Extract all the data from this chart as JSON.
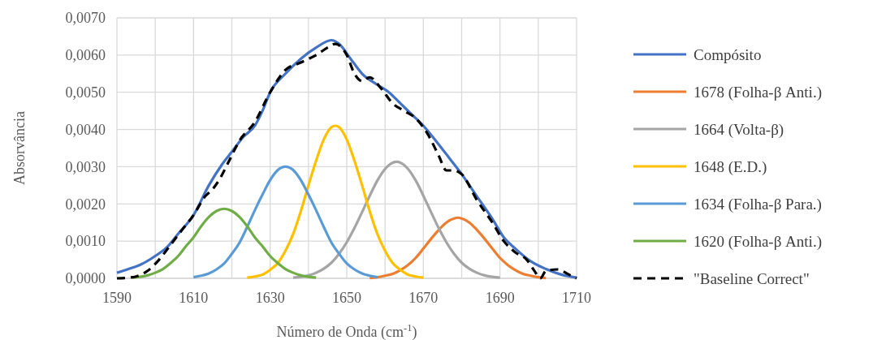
{
  "chart_data": {
    "type": "line",
    "xlabel": "Número de Onda (cm$^{-1}$)",
    "ylabel": "Absorvância",
    "xlim": [
      1590,
      1710
    ],
    "ylim": [
      0,
      0.007
    ],
    "xticks": [
      1590,
      {
        "value": 1600,
        "label": null
      },
      1610,
      {
        "value": 1620,
        "label": null
      },
      1630,
      {
        "value": 1640,
        "label": null
      },
      1650,
      {
        "value": 1660,
        "label": null
      },
      1670,
      {
        "value": 1680,
        "label": null
      },
      1690,
      {
        "value": 1700,
        "label": null
      },
      1710
    ],
    "yticks": [
      {
        "value": 0,
        "label": "0,0000"
      },
      {
        "value": 0.001,
        "label": "0,0010"
      },
      {
        "value": 0.002,
        "label": "0,0020"
      },
      {
        "value": 0.003,
        "label": "0,0030"
      },
      {
        "value": 0.004,
        "label": "0,0040"
      },
      {
        "value": 0.005,
        "label": "0,0050"
      },
      {
        "value": 0.006,
        "label": "0,0060"
      },
      {
        "value": 0.007,
        "label": "0,0070"
      }
    ],
    "grid": true,
    "legend": "right",
    "marker": "none",
    "series": [
      {
        "name": "Compósito",
        "color": "#4472c4",
        "x": [
          1590,
          1593,
          1596,
          1600,
          1603,
          1606,
          1610,
          1614,
          1617.5,
          1620,
          1623,
          1626,
          1628,
          1630,
          1634,
          1638,
          1642,
          1646,
          1648,
          1651,
          1654,
          1658,
          1661,
          1664,
          1667,
          1670,
          1674,
          1677,
          1680,
          1684,
          1688,
          1691,
          1694,
          1698,
          1702,
          1706,
          1710
        ],
        "values": [
          0.00015,
          0.00025,
          0.00036,
          0.0006,
          0.00083,
          0.0012,
          0.0017,
          0.0025,
          0.00307,
          0.0034,
          0.0038,
          0.0041,
          0.0045,
          0.005,
          0.0055,
          0.0059,
          0.0062,
          0.0064,
          0.0063,
          0.0059,
          0.0055,
          0.0052,
          0.005,
          0.0047,
          0.0044,
          0.0041,
          0.0036,
          0.0032,
          0.0028,
          0.0022,
          0.0016,
          0.0011,
          0.0008,
          0.00046,
          0.00025,
          0.0001,
          2e-05
        ]
      },
      {
        "name": "1678 (Folha-β Anti.)",
        "color": "#ed7d31",
        "x": [
          1656,
          1658,
          1660,
          1662,
          1664,
          1666,
          1668,
          1670,
          1672,
          1674,
          1676,
          1678,
          1679,
          1680,
          1682,
          1684,
          1686,
          1688,
          1690,
          1692,
          1694,
          1696,
          1698,
          1700,
          1702
        ],
        "values": [
          1e-05,
          3e-05,
          7e-05,
          0.00012,
          0.00022,
          0.00036,
          0.00055,
          0.0008,
          0.00106,
          0.0013,
          0.0015,
          0.00161,
          0.00163,
          0.00161,
          0.0015,
          0.0013,
          0.00106,
          0.0008,
          0.00055,
          0.00036,
          0.00022,
          0.00012,
          7e-05,
          3e-05,
          1e-05
        ]
      },
      {
        "name": "1664 (Volta-β)",
        "color": "#a5a5a5",
        "x": [
          1636,
          1638,
          1640,
          1642,
          1644,
          1646,
          1648,
          1650,
          1652,
          1654,
          1656,
          1658,
          1660,
          1662,
          1663,
          1664,
          1666,
          1668,
          1670,
          1672,
          1674,
          1676,
          1678,
          1680,
          1682,
          1684,
          1686,
          1688,
          1690
        ],
        "values": [
          2e-05,
          4e-05,
          8e-05,
          0.00015,
          0.00026,
          0.00042,
          0.00066,
          0.00097,
          0.00135,
          0.00178,
          0.00222,
          0.00263,
          0.00294,
          0.00311,
          0.00313,
          0.00311,
          0.00294,
          0.00263,
          0.00222,
          0.00178,
          0.00135,
          0.00097,
          0.00066,
          0.00042,
          0.00026,
          0.00015,
          8e-05,
          4e-05,
          2e-05
        ]
      },
      {
        "name": "1648 (E.D.)",
        "color": "#ffc000",
        "x": [
          1624,
          1626,
          1628,
          1630,
          1632,
          1634,
          1636,
          1638,
          1640,
          1642,
          1644,
          1646,
          1647,
          1648,
          1650,
          1652,
          1654,
          1656,
          1658,
          1660,
          1662,
          1664,
          1666,
          1668,
          1670
        ],
        "values": [
          2e-05,
          5e-05,
          0.0001,
          0.00023,
          0.00041,
          0.00074,
          0.00119,
          0.0018,
          0.0025,
          0.00316,
          0.00373,
          0.00406,
          0.0041,
          0.00406,
          0.00373,
          0.00316,
          0.0025,
          0.0018,
          0.00119,
          0.00074,
          0.00041,
          0.00023,
          0.0001,
          5e-05,
          2e-05
        ]
      },
      {
        "name": "1634 (Folha-β Para.)",
        "color": "#5b9bd5",
        "x": [
          1610,
          1612,
          1614,
          1616,
          1618,
          1620,
          1622,
          1624,
          1626,
          1628,
          1630,
          1632,
          1634,
          1636,
          1638,
          1640,
          1642,
          1644,
          1646,
          1648,
          1650,
          1652,
          1654,
          1656,
          1658
        ],
        "values": [
          3e-05,
          7e-05,
          0.00013,
          0.00024,
          0.0004,
          0.00066,
          0.00096,
          0.00138,
          0.00183,
          0.00225,
          0.00264,
          0.00291,
          0.003,
          0.00291,
          0.00264,
          0.00225,
          0.00183,
          0.00138,
          0.00096,
          0.00066,
          0.0004,
          0.00024,
          0.00013,
          7e-05,
          3e-05
        ]
      },
      {
        "name": "1620 (Folha-β Anti.)",
        "color": "#70ad47",
        "x": [
          1594,
          1596,
          1598,
          1600,
          1602,
          1604,
          1606,
          1608,
          1610,
          1612,
          1614,
          1616,
          1618,
          1620,
          1622,
          1624,
          1626,
          1628,
          1630,
          1632,
          1634,
          1636,
          1638,
          1640,
          1642
        ],
        "values": [
          2e-05,
          4e-05,
          8e-05,
          0.00015,
          0.00025,
          0.00041,
          0.0006,
          0.00086,
          0.0011,
          0.0014,
          0.00165,
          0.00181,
          0.00187,
          0.00181,
          0.00165,
          0.0014,
          0.0011,
          0.00086,
          0.0006,
          0.00041,
          0.00025,
          0.00015,
          8e-05,
          4e-05,
          2e-05
        ]
      },
      {
        "name": "\"Baseline Correct\"",
        "color": "#000000",
        "line_style": "dashed",
        "x": [
          1590,
          1592,
          1595,
          1598,
          1601,
          1604,
          1607,
          1610,
          1613,
          1615,
          1617,
          1619,
          1622,
          1626,
          1630,
          1634,
          1638,
          1642,
          1645,
          1647,
          1650,
          1652,
          1654,
          1656,
          1659,
          1662,
          1665,
          1668,
          1671,
          1674,
          1676,
          1678,
          1680,
          1684,
          1688,
          1691,
          1694,
          1697,
          1699,
          1700.5,
          1702,
          1705,
          1708,
          1710
        ],
        "values": [
          0,
          1e-05,
          5e-05,
          0.0002,
          0.0005,
          0.0009,
          0.0013,
          0.0017,
          0.0022,
          0.0024,
          0.0027,
          0.0031,
          0.0037,
          0.0042,
          0.005,
          0.0056,
          0.0058,
          0.006,
          0.0062,
          0.0063,
          0.006,
          0.0055,
          0.0053,
          0.0054,
          0.0051,
          0.0047,
          0.0045,
          0.0043,
          0.0039,
          0.0033,
          0.0029,
          0.0029,
          0.0028,
          0.0021,
          0.0015,
          0.001,
          0.0007,
          0.0005,
          0.0002,
          0,
          0.0002,
          0.00024,
          0.0001,
          0
        ]
      }
    ]
  }
}
